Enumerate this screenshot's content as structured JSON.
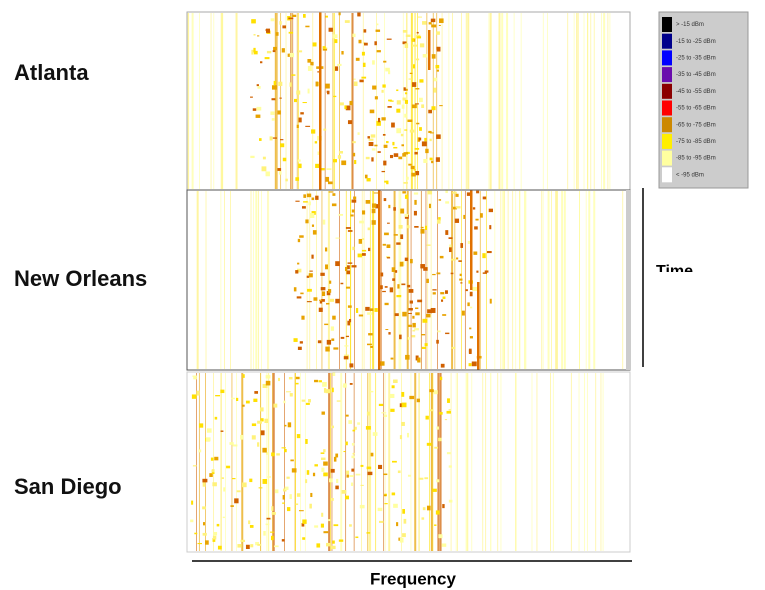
{
  "panels": [
    {
      "label": "Atlanta"
    },
    {
      "label": "New Orleans"
    },
    {
      "label": "San Diego"
    }
  ],
  "axes": {
    "time": "Time",
    "frequency": "Frequency"
  },
  "legend": [
    {
      "label": "> -15 dBm",
      "color": "#000000"
    },
    {
      "label": "-15 to -25 dBm",
      "color": "#00008b"
    },
    {
      "label": "-25 to -35 dBm",
      "color": "#0000ff"
    },
    {
      "label": "-35 to -45 dBm",
      "color": "#6a0dad"
    },
    {
      "label": "-45 to -55 dBm",
      "color": "#8b0000"
    },
    {
      "label": "-55 to -65 dBm",
      "color": "#ff0000"
    },
    {
      "label": "-65 to -75 dBm",
      "color": "#cc8800"
    },
    {
      "label": "-75 to -85 dBm",
      "color": "#ffee00"
    },
    {
      "label": "-85 to -95 dBm",
      "color": "#ffffa0"
    },
    {
      "label": "< -95 dBm",
      "color": "#ffffff"
    }
  ]
}
